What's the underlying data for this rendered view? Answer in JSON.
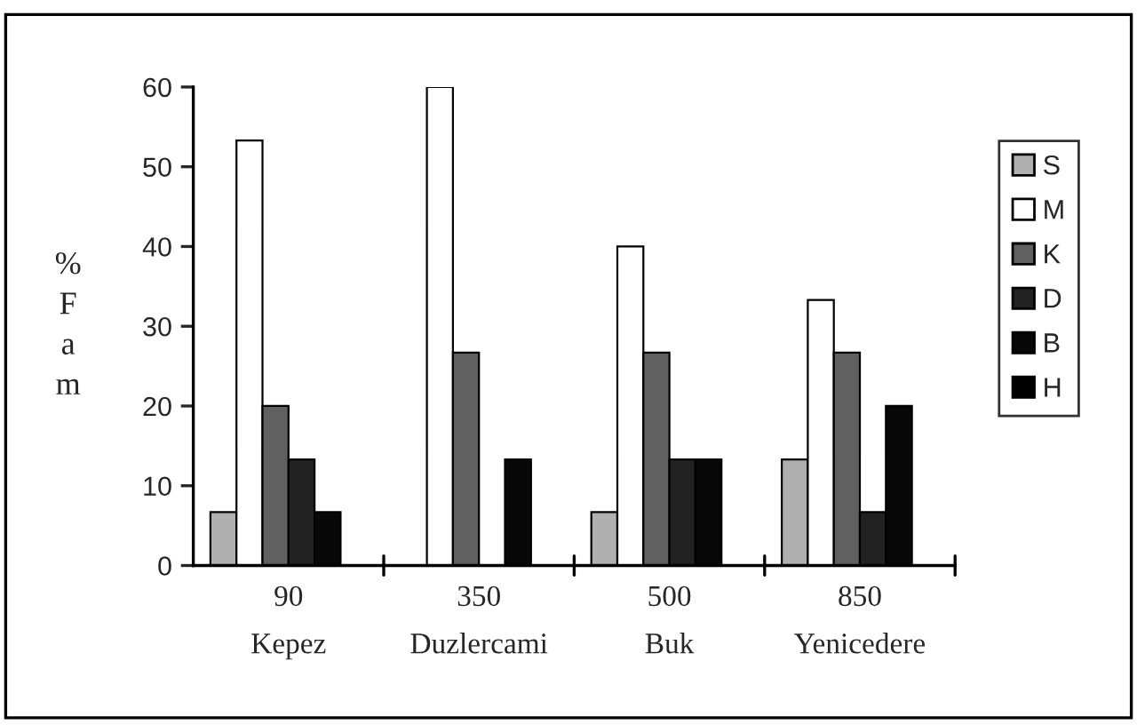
{
  "chart_data": {
    "type": "bar",
    "ylabel": "%\nF\na\nm",
    "categories": [
      "90\nKepez",
      "350\nDuzlercami",
      "500\nBuk",
      "850\nYenicedere"
    ],
    "series": [
      {
        "name": "S",
        "color": "#b0b0b0",
        "values": [
          6.7,
          null,
          6.7,
          13.3
        ]
      },
      {
        "name": "M",
        "color": "#ffffff",
        "values": [
          53.3,
          60,
          40,
          33.3
        ]
      },
      {
        "name": "K",
        "color": "#606060",
        "values": [
          20,
          26.7,
          26.7,
          26.7
        ]
      },
      {
        "name": "D",
        "color": "#222222",
        "values": [
          13.3,
          null,
          13.3,
          6.7
        ]
      },
      {
        "name": "B",
        "color": "#080808",
        "values": [
          6.7,
          13.3,
          13.3,
          20
        ]
      },
      {
        "name": "H",
        "color": "#000000",
        "values": [
          null,
          null,
          null,
          null
        ]
      }
    ],
    "ylim": [
      0,
      60
    ],
    "yticks": [
      0,
      10,
      20,
      30,
      40,
      50,
      60
    ],
    "grid": false,
    "legend": "right"
  }
}
